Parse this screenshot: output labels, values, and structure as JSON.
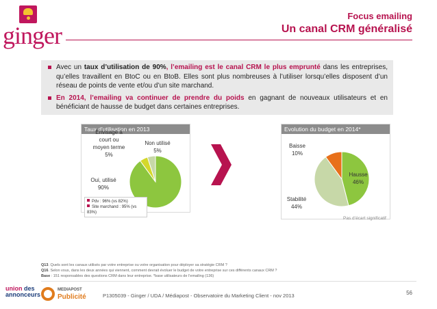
{
  "brand": {
    "logo_text": "ginger",
    "accent": "#b7134f"
  },
  "header": {
    "kicker": "Focus emailing",
    "title": "Un canal CRM généralisé"
  },
  "summary": {
    "b1_pre": "Avec un ",
    "b1_hl1": "taux d’utilisation de 90%",
    "b1_hl2": ", l’emailing est le canal CRM le plus emprunté",
    "b1_post": " dans les entreprises, qu’elles travaillent en BtoC ou en BtoB. Elles sont plus nombreuses à l’utiliser lorsqu’elles disposent d’un réseau de points de vente et/ou d’un site marchand.",
    "b2_hl": "En 2014, l’emailing va continuer de prendre du poids",
    "b2_post": " en gagnant de nouveaux utilisateurs et en bénéficiant de hausse de budget dans certaines entreprises."
  },
  "chart_data": [
    {
      "type": "pie",
      "title": "Taux d’utilisation en 2013",
      "slices": [
        {
          "label": "Oui, utilisé",
          "value": 90,
          "display": "90%",
          "color": "#8dc63f"
        },
        {
          "label": "Envisagé à court ou moyen terme",
          "value": 5,
          "display": "5%",
          "color": "#d4d82b"
        },
        {
          "label": "Non utilisé",
          "value": 5,
          "display": "5%",
          "color": "#c7d8a8"
        }
      ],
      "legend": [
        "Pdv : 96% (vs 82%)",
        "Site marchand : 95% (vs 83%)"
      ]
    },
    {
      "type": "pie",
      "title": "Evolution du budget en 2014*",
      "slices": [
        {
          "label": "Hausse",
          "value": 46,
          "display": "46%",
          "color": "#8dc63f"
        },
        {
          "label": "Stabilité",
          "value": 44,
          "display": "44%",
          "color": "#c7d8a8"
        },
        {
          "label": "Baisse",
          "value": 10,
          "display": "10%",
          "color": "#e8701a"
        }
      ],
      "note": "Pas d’écart significatif"
    }
  ],
  "left_labels": {
    "envisage": [
      "Envisagé à",
      "court ou",
      "moyen terme",
      "5%"
    ],
    "non": [
      "Non utilisé",
      "5%"
    ],
    "oui": [
      "Oui, utilisé",
      "90%"
    ]
  },
  "right_labels": {
    "baisse": [
      "Baisse",
      "10%"
    ],
    "hausse": [
      "Hausse",
      "46%"
    ],
    "stab": [
      "Stabilité",
      "44%"
    ]
  },
  "questions": {
    "q13_label": "Q13",
    "q13": ". Quels sont les canaux utilisés par votre entreprise ou votre organisation pour déployer sa stratégie CRM ?",
    "q16_label": "Q16",
    "q16": ". Selon vous, dans les deux années qui viennent, comment devrait évoluer le budget de votre entreprise sur ces différents canaux CRM ?",
    "base_label": "Base",
    "base": " : 151 responsables des questions CRM dans leur entreprise. *base utilisateurs de l’emailing (136)"
  },
  "footer": {
    "logo1_line1": "union",
    "logo1_line2": "des",
    "logo1_line3": "annonceurs",
    "logo2_top": "MEDIAPOST",
    "logo2_bottom": "Publicité",
    "text": "P1305039 - Ginger / UDA / Médiapost - Observatoire du Marketing Client - nov 2013",
    "page": "56"
  }
}
